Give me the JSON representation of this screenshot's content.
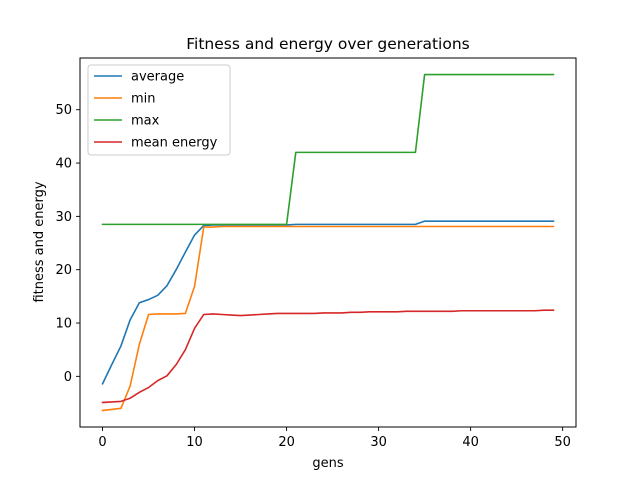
{
  "chart_data": {
    "type": "line",
    "title": "Fitness and energy over generations",
    "xlabel": "gens",
    "ylabel": "fitness and energy",
    "xlim": [
      -2.45,
      51.45
    ],
    "ylim": [
      -9.5,
      59.7
    ],
    "xticks": [
      0,
      10,
      20,
      30,
      40,
      50
    ],
    "yticks": [
      0,
      10,
      20,
      30,
      40,
      50
    ],
    "grid": false,
    "legend_position": "upper-left",
    "x": [
      0,
      1,
      2,
      3,
      4,
      5,
      6,
      7,
      8,
      9,
      10,
      11,
      12,
      13,
      14,
      15,
      16,
      17,
      18,
      19,
      20,
      21,
      22,
      23,
      24,
      25,
      26,
      27,
      28,
      29,
      30,
      31,
      32,
      33,
      34,
      35,
      36,
      37,
      38,
      39,
      40,
      41,
      42,
      43,
      44,
      45,
      46,
      47,
      48,
      49
    ],
    "series": [
      {
        "name": "average",
        "color": "#1f77b4",
        "values": [
          -1.4,
          2.2,
          5.7,
          10.6,
          13.8,
          14.4,
          15.2,
          17.0,
          20.0,
          23.3,
          26.5,
          28.3,
          28.4,
          28.4,
          28.4,
          28.4,
          28.4,
          28.4,
          28.4,
          28.4,
          28.4,
          28.5,
          28.5,
          28.5,
          28.5,
          28.5,
          28.5,
          28.5,
          28.5,
          28.5,
          28.5,
          28.5,
          28.5,
          28.5,
          28.5,
          29.1,
          29.1,
          29.1,
          29.1,
          29.1,
          29.1,
          29.1,
          29.1,
          29.1,
          29.1,
          29.1,
          29.1,
          29.1,
          29.1,
          29.1
        ]
      },
      {
        "name": "min",
        "color": "#ff7f0e",
        "values": [
          -6.4,
          -6.2,
          -6.0,
          -1.8,
          6.0,
          11.6,
          11.7,
          11.7,
          11.7,
          11.8,
          16.9,
          28.0,
          28.0,
          28.1,
          28.1,
          28.1,
          28.1,
          28.1,
          28.1,
          28.1,
          28.1,
          28.1,
          28.1,
          28.1,
          28.1,
          28.1,
          28.1,
          28.1,
          28.1,
          28.1,
          28.1,
          28.1,
          28.1,
          28.1,
          28.1,
          28.1,
          28.1,
          28.1,
          28.1,
          28.1,
          28.1,
          28.1,
          28.1,
          28.1,
          28.1,
          28.1,
          28.1,
          28.1,
          28.1,
          28.1
        ]
      },
      {
        "name": "max",
        "color": "#2ca02c",
        "values": [
          28.5,
          28.5,
          28.5,
          28.5,
          28.5,
          28.5,
          28.5,
          28.5,
          28.5,
          28.5,
          28.5,
          28.5,
          28.5,
          28.5,
          28.5,
          28.5,
          28.5,
          28.5,
          28.5,
          28.5,
          28.5,
          42.0,
          42.0,
          42.0,
          42.0,
          42.0,
          42.0,
          42.0,
          42.0,
          42.0,
          42.0,
          42.0,
          42.0,
          42.0,
          42.0,
          56.6,
          56.6,
          56.6,
          56.6,
          56.6,
          56.6,
          56.6,
          56.6,
          56.6,
          56.6,
          56.6,
          56.6,
          56.6,
          56.6,
          56.6
        ]
      },
      {
        "name": "mean energy",
        "color": "#d62728",
        "values": [
          -4.9,
          -4.8,
          -4.7,
          -4.1,
          -3.0,
          -2.1,
          -0.8,
          0.1,
          2.2,
          5.0,
          9.0,
          11.6,
          11.7,
          11.6,
          11.5,
          11.4,
          11.5,
          11.6,
          11.7,
          11.8,
          11.8,
          11.8,
          11.8,
          11.8,
          11.9,
          11.9,
          11.9,
          12.0,
          12.0,
          12.1,
          12.1,
          12.1,
          12.1,
          12.2,
          12.2,
          12.2,
          12.2,
          12.2,
          12.2,
          12.3,
          12.3,
          12.3,
          12.3,
          12.3,
          12.3,
          12.3,
          12.3,
          12.3,
          12.4,
          12.4
        ]
      }
    ]
  }
}
